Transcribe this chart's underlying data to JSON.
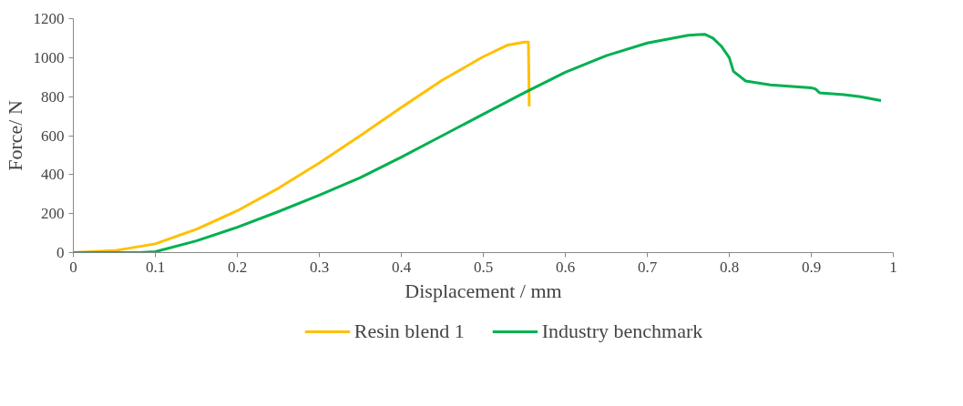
{
  "chart_data": {
    "type": "line",
    "xlabel": "Displacement / mm",
    "ylabel": "Force/ N",
    "xlim": [
      0,
      1
    ],
    "ylim": [
      0,
      1200
    ],
    "xticks": [
      0,
      0.1,
      0.2,
      0.3,
      0.4,
      0.5,
      0.6,
      0.7,
      0.8,
      0.9,
      1
    ],
    "yticks": [
      0,
      200,
      400,
      600,
      800,
      1000,
      1200
    ],
    "grid": false,
    "legend": "bottom",
    "marker": "none",
    "line_style": "solid",
    "series": [
      {
        "name": "Resin blend 1",
        "color": "#ffc000",
        "x": [
          0,
          0.05,
          0.1,
          0.15,
          0.2,
          0.25,
          0.3,
          0.35,
          0.4,
          0.45,
          0.5,
          0.53,
          0.55,
          0.555,
          0.556
        ],
        "values": [
          0,
          10,
          45,
          120,
          215,
          330,
          460,
          600,
          745,
          885,
          1005,
          1065,
          1080,
          1080,
          750
        ]
      },
      {
        "name": "Industry benchmark",
        "color": "#00b050",
        "x": [
          0,
          0.08,
          0.1,
          0.15,
          0.2,
          0.25,
          0.3,
          0.35,
          0.4,
          0.45,
          0.5,
          0.55,
          0.6,
          0.65,
          0.7,
          0.75,
          0.77,
          0.78,
          0.79,
          0.8,
          0.805,
          0.82,
          0.85,
          0.9,
          0.905,
          0.91,
          0.94,
          0.96,
          0.985
        ],
        "values": [
          0,
          0,
          5,
          60,
          130,
          210,
          295,
          385,
          490,
          600,
          710,
          820,
          925,
          1010,
          1075,
          1115,
          1120,
          1100,
          1060,
          1000,
          930,
          880,
          860,
          845,
          840,
          820,
          810,
          800,
          780
        ]
      }
    ]
  }
}
